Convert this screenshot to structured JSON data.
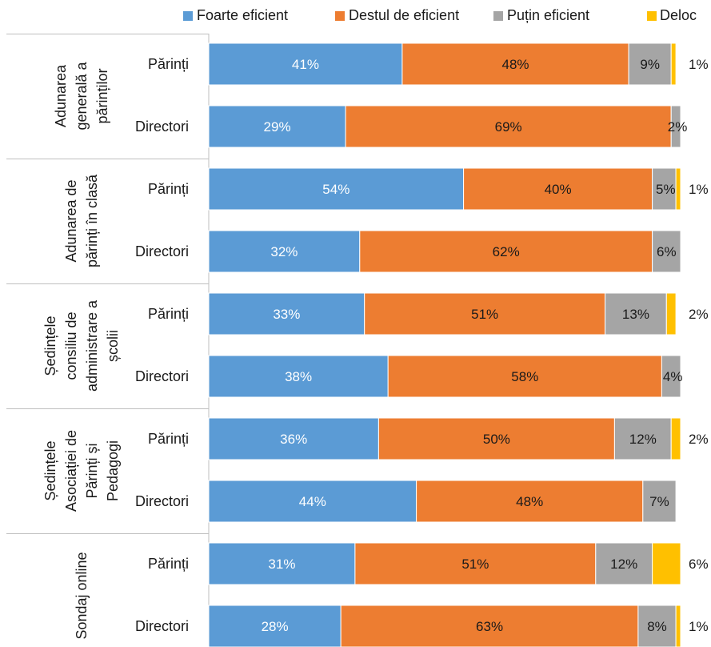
{
  "chart_data": {
    "type": "bar",
    "orientation": "horizontal",
    "stacked": true,
    "percent": true,
    "legend": {
      "placement": "top",
      "entries": [
        {
          "name": "Foarte eficient",
          "color": "#5B9BD5"
        },
        {
          "name": "Destul de eficient",
          "color": "#ED7D31"
        },
        {
          "name": "Puțin eficient",
          "color": "#A5A5A5"
        },
        {
          "name": "Deloc",
          "color": "#FFC000"
        }
      ]
    },
    "groups": [
      {
        "label": [
          "Adunarea",
          "generală a",
          "părinților"
        ],
        "rows": [
          {
            "label": "Părinți",
            "values": [
              41,
              48,
              9,
              1
            ],
            "labels": [
              "41%",
              "48%",
              "9%",
              "1%"
            ]
          },
          {
            "label": "Directori",
            "values": [
              29,
              69,
              2,
              0
            ],
            "labels": [
              "29%",
              "69%",
              "2%",
              ""
            ]
          }
        ]
      },
      {
        "label": [
          "Adunarea de",
          "părinți în clasă"
        ],
        "rows": [
          {
            "label": "Părinți",
            "values": [
              54,
              40,
              5,
              1
            ],
            "labels": [
              "54%",
              "40%",
              "5%",
              "1%"
            ]
          },
          {
            "label": "Directori",
            "values": [
              32,
              62,
              6,
              0
            ],
            "labels": [
              "32%",
              "62%",
              "6%",
              ""
            ]
          }
        ]
      },
      {
        "label": [
          "Ședințele",
          "consiliu de",
          "administrare a",
          "școlii"
        ],
        "rows": [
          {
            "label": "Părinți",
            "values": [
              33,
              51,
              13,
              2
            ],
            "labels": [
              "33%",
              "51%",
              "13%",
              "2%"
            ]
          },
          {
            "label": "Directori",
            "values": [
              38,
              58,
              4,
              0
            ],
            "labels": [
              "38%",
              "58%",
              "4%",
              ""
            ]
          }
        ]
      },
      {
        "label": [
          "Ședințele",
          "Asociației de",
          "Părinți și",
          "Pedagogi"
        ],
        "rows": [
          {
            "label": "Părinți",
            "values": [
              36,
              50,
              12,
              2
            ],
            "labels": [
              "36%",
              "50%",
              "12%",
              "2%"
            ]
          },
          {
            "label": "Directori",
            "values": [
              44,
              48,
              7,
              0
            ],
            "labels": [
              "44%",
              "48%",
              "7%",
              ""
            ]
          }
        ]
      },
      {
        "label": [
          "Sondaj online"
        ],
        "rows": [
          {
            "label": "Părinți",
            "values": [
              31,
              51,
              12,
              6
            ],
            "labels": [
              "31%",
              "51%",
              "12%",
              "6%"
            ]
          },
          {
            "label": "Directori",
            "values": [
              28,
              63,
              8,
              1
            ],
            "labels": [
              "28%",
              "63%",
              "8%",
              "1%"
            ]
          }
        ]
      }
    ]
  }
}
